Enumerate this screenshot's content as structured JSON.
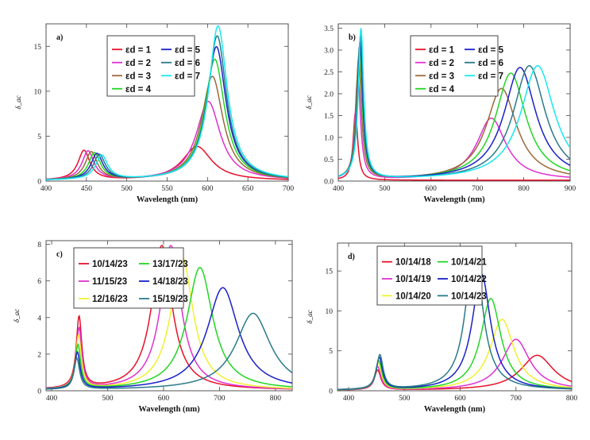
{
  "chart_data": [
    {
      "type": "line",
      "panel_label": "a)",
      "xlabel": "Wavelength (nm)",
      "ylabel": "δ_ac",
      "xlim": [
        400,
        700
      ],
      "ylim": [
        0,
        17.5
      ],
      "xticks": [
        "400",
        "450",
        "500",
        "550",
        "600",
        "650",
        "700"
      ],
      "yticks": [
        "0",
        "5",
        "10",
        "15"
      ],
      "legend_cols": 2,
      "series": [
        {
          "name": "εd = 1",
          "color": "#e8102a",
          "peaks": [
            [
              447,
              3.3,
              9
            ],
            [
              587,
              3.8,
              22
            ]
          ],
          "base": 0.05
        },
        {
          "name": "εd = 2",
          "color": "#e030d0",
          "peaks": [
            [
              452,
              3.2,
              9
            ],
            [
              601,
              8.8,
              18
            ]
          ],
          "base": 0.05
        },
        {
          "name": "εd = 3",
          "color": "#9a6a3a",
          "peaks": [
            [
              456,
              3.1,
              9
            ],
            [
              606,
              11.6,
              16
            ]
          ],
          "base": 0.05
        },
        {
          "name": "εd = 4",
          "color": "#22d622",
          "peaks": [
            [
              460,
              3.0,
              9
            ],
            [
              609,
              13.5,
              15
            ]
          ],
          "base": 0.05
        },
        {
          "name": "εd = 5",
          "color": "#1a20c8",
          "peaks": [
            [
              463,
              2.9,
              9
            ],
            [
              611,
              14.9,
              14.5
            ]
          ],
          "base": 0.05
        },
        {
          "name": "εd = 6",
          "color": "#2a7a8a",
          "peaks": [
            [
              466,
              2.8,
              9
            ],
            [
              612,
              16.1,
              14
            ]
          ],
          "base": 0.05
        },
        {
          "name": "εd = 7",
          "color": "#18e8f0",
          "peaks": [
            [
              469,
              2.7,
              9
            ],
            [
              613,
              17.2,
              14
            ]
          ],
          "base": 0.05
        }
      ]
    },
    {
      "type": "line",
      "panel_label": "b)",
      "xlabel": "Wavelength (nm)",
      "ylabel": "δ_ac",
      "xlim": [
        400,
        900
      ],
      "ylim": [
        0,
        3.6
      ],
      "xticks": [
        "400",
        "500",
        "600",
        "700",
        "800",
        "900"
      ],
      "yticks": [
        "0.0",
        "0.5",
        "1.0",
        "1.5",
        "2.0",
        "2.5",
        "3.0",
        "3.5"
      ],
      "legend_cols": 2,
      "series": [
        {
          "name": "εd = 1",
          "color": "#e8102a",
          "peaks": [
            [
              437,
              1.55,
              6
            ]
          ],
          "base": 0.02
        },
        {
          "name": "εd = 2",
          "color": "#e030d0",
          "peaks": [
            [
              442,
              2.4,
              7
            ],
            [
              730,
              1.42,
              38
            ]
          ],
          "base": 0.02
        },
        {
          "name": "εd = 3",
          "color": "#9a6a3a",
          "peaks": [
            [
              444,
              2.8,
              7
            ],
            [
              752,
              2.1,
              40
            ]
          ],
          "base": 0.02
        },
        {
          "name": "εd = 4",
          "color": "#22d622",
          "peaks": [
            [
              446,
              3.05,
              7
            ],
            [
              772,
              2.45,
              40
            ]
          ],
          "base": 0.02
        },
        {
          "name": "εd = 5",
          "color": "#1a20c8",
          "peaks": [
            [
              447,
              3.15,
              7
            ],
            [
              792,
              2.58,
              42
            ]
          ],
          "base": 0.02
        },
        {
          "name": "εd = 6",
          "color": "#2a7a8a",
          "peaks": [
            [
              448,
              3.3,
              7
            ],
            [
              812,
              2.62,
              42
            ]
          ],
          "base": 0.02
        },
        {
          "name": "εd = 7",
          "color": "#18e8f0",
          "peaks": [
            [
              449,
              3.45,
              7
            ],
            [
              830,
              2.62,
              44
            ]
          ],
          "base": 0.02
        }
      ]
    },
    {
      "type": "line",
      "panel_label": "c)",
      "xlabel": "Wavelength (nm)",
      "ylabel": "δ_ac",
      "xlim": [
        390,
        830
      ],
      "ylim": [
        0,
        8.2
      ],
      "xticks": [
        "400",
        "500",
        "600",
        "700",
        "800"
      ],
      "yticks": [
        "0",
        "2",
        "4",
        "6",
        "8"
      ],
      "legend_cols": 2,
      "series": [
        {
          "name": "10/14/23",
          "color": "#e8102a",
          "peaks": [
            [
              449,
              3.9,
              6
            ],
            [
              597,
              7.9,
              22
            ]
          ],
          "base": 0.03
        },
        {
          "name": "11/15/23",
          "color": "#e030d0",
          "peaks": [
            [
              449,
              3.3,
              6
            ],
            [
              613,
              7.9,
              22
            ]
          ],
          "base": 0.03
        },
        {
          "name": "12/16/23",
          "color": "#f0f030",
          "peaks": [
            [
              448,
              2.9,
              6
            ],
            [
              633,
              7.3,
              24
            ]
          ],
          "base": 0.03
        },
        {
          "name": "13/17/23",
          "color": "#22d622",
          "peaks": [
            [
              447,
              2.4,
              6
            ],
            [
              665,
              6.7,
              28
            ]
          ],
          "base": 0.03
        },
        {
          "name": "14/18/23",
          "color": "#1a20c8",
          "peaks": [
            [
              446,
              2.0,
              6
            ],
            [
              706,
              5.6,
              34
            ]
          ],
          "base": 0.03
        },
        {
          "name": "15/19/23",
          "color": "#2a7a8a",
          "peaks": [
            [
              445,
              1.7,
              6
            ],
            [
              760,
              4.2,
              38
            ]
          ],
          "base": 0.03
        }
      ]
    },
    {
      "type": "line",
      "panel_label": "d)",
      "xlabel": "Wavelength (nm)",
      "ylabel": "δ_ac",
      "xlim": [
        380,
        800
      ],
      "ylim": [
        0,
        18.5
      ],
      "xticks": [
        "400",
        "500",
        "600",
        "700",
        "800"
      ],
      "yticks": [
        "0",
        "5",
        "10",
        "15"
      ],
      "legend_cols": 2,
      "series": [
        {
          "name": "10/14/18",
          "color": "#e8102a",
          "peaks": [
            [
              452,
              2.5,
              7
            ],
            [
              738,
              4.4,
              36
            ]
          ],
          "base": 0.04
        },
        {
          "name": "10/14/19",
          "color": "#e030d0",
          "peaks": [
            [
              452,
              2.9,
              7
            ],
            [
              700,
              6.4,
              30
            ]
          ],
          "base": 0.04
        },
        {
          "name": "10/14/20",
          "color": "#f0f030",
          "peaks": [
            [
              453,
              3.3,
              7
            ],
            [
              675,
              8.9,
              26
            ]
          ],
          "base": 0.04
        },
        {
          "name": "10/14/21",
          "color": "#22d622",
          "peaks": [
            [
              454,
              3.6,
              7
            ],
            [
              655,
              11.5,
              22
            ]
          ],
          "base": 0.04
        },
        {
          "name": "10/14/22",
          "color": "#1a20c8",
          "peaks": [
            [
              455,
              4.0,
              7
            ],
            [
              638,
              14.6,
              20
            ]
          ],
          "base": 0.04
        },
        {
          "name": "10/14/23",
          "color": "#2a7a8a",
          "peaks": [
            [
              456,
              4.3,
              7
            ],
            [
              625,
              18.0,
              18
            ]
          ],
          "base": 0.04
        }
      ]
    }
  ]
}
